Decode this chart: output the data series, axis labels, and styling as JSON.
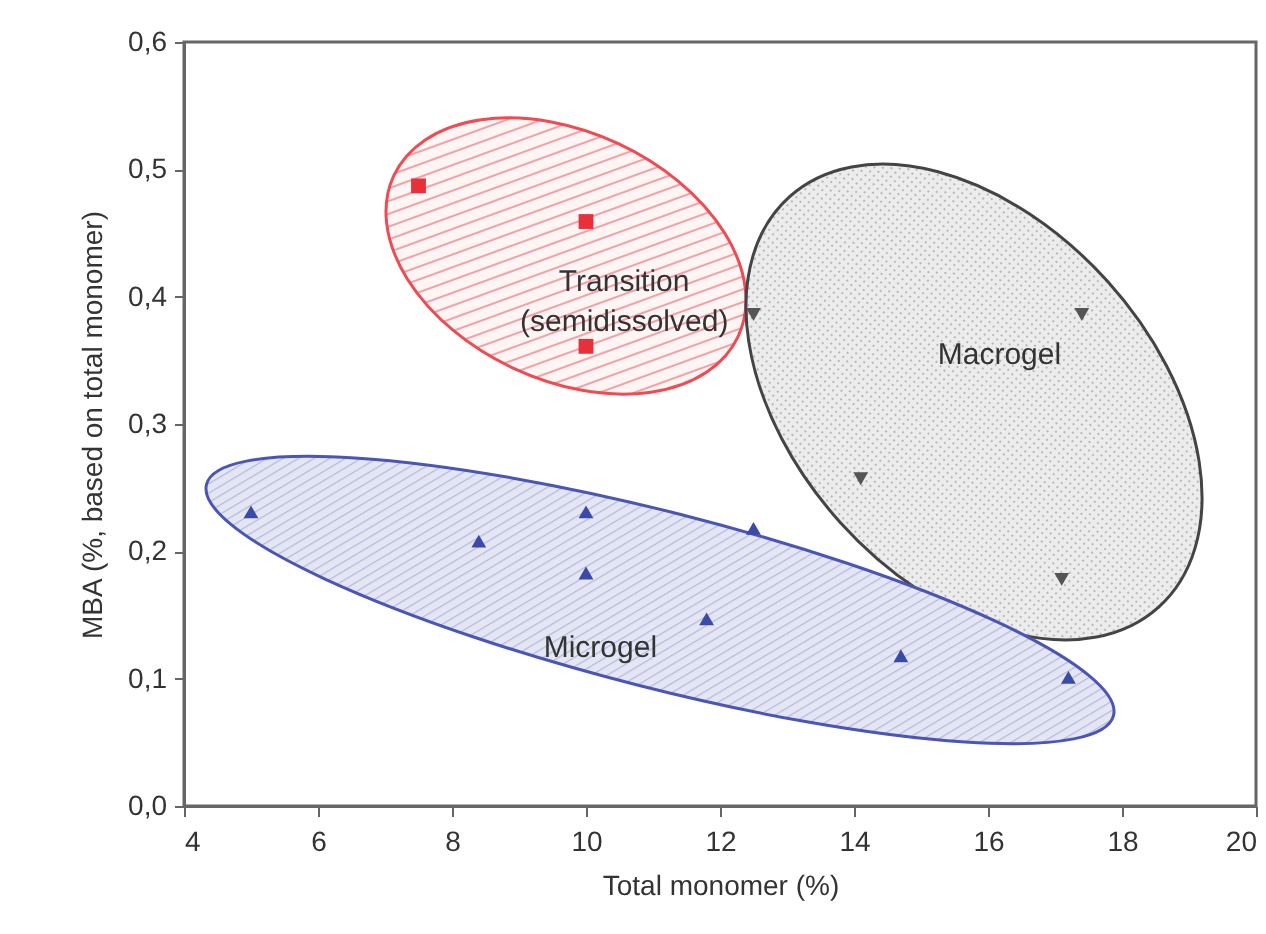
{
  "chart_data": {
    "type": "scatter",
    "xlabel": "Total monomer (%)",
    "ylabel": "MBA (%, based on total monomer)",
    "xlim": [
      4,
      20
    ],
    "xticks": [
      4,
      6,
      8,
      10,
      12,
      14,
      16,
      18,
      20
    ],
    "ylim": [
      0,
      0.6
    ],
    "yticks": [
      {
        "value": 0,
        "label": "0,0"
      },
      {
        "value": 0.1,
        "label": "0,1"
      },
      {
        "value": 0.2,
        "label": "0,2"
      },
      {
        "value": 0.3,
        "label": "0,3"
      },
      {
        "value": 0.4,
        "label": "0,4"
      },
      {
        "value": 0.5,
        "label": "0,5"
      },
      {
        "value": 0.6,
        "label": "0,6"
      }
    ],
    "grid": false,
    "series": [
      {
        "name": "Transition\n(semidissolved)",
        "color": "#e8303a",
        "marker": "square",
        "x": [
          7.5,
          10,
          10
        ],
        "values": [
          0.487,
          0.459,
          0.361
        ]
      },
      {
        "name": "Macrogel",
        "color": "#555555",
        "marker": "triangle-down",
        "x": [
          12.5,
          17.4,
          14.1,
          17.1
        ],
        "values": [
          0.386,
          0.386,
          0.257,
          0.178
        ]
      },
      {
        "name": "Microgel",
        "color": "#3a4aa8",
        "marker": "triangle",
        "x": [
          5,
          8.4,
          10,
          10,
          11.8,
          12.5,
          14.7,
          17.2
        ],
        "values": [
          0.231,
          0.208,
          0.231,
          0.183,
          0.147,
          0.218,
          0.118,
          0.101
        ]
      }
    ]
  }
}
